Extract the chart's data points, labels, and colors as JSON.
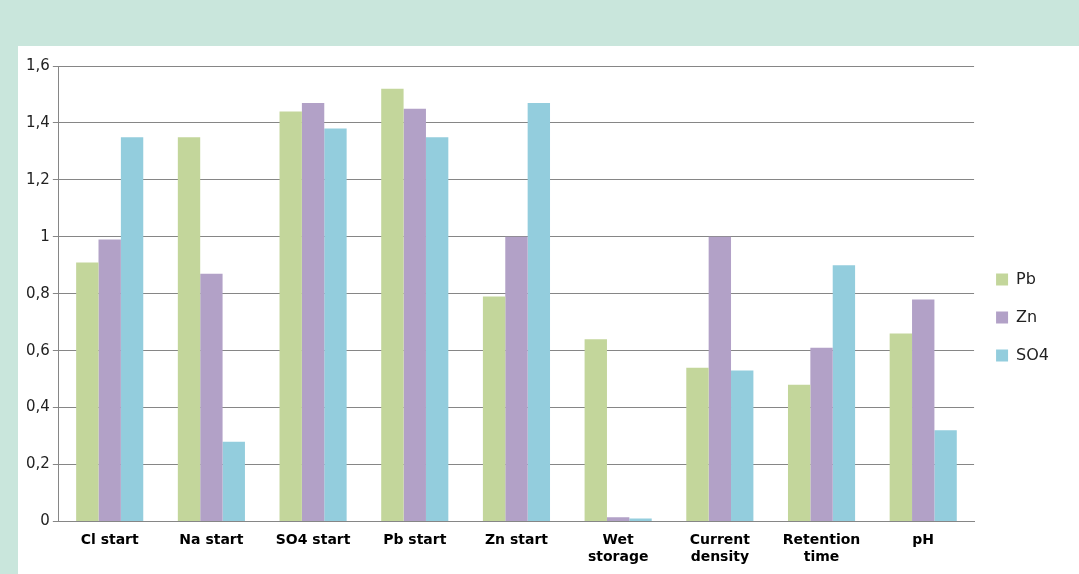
{
  "chart_data": {
    "type": "bar",
    "categories": [
      "Cl start",
      "Na start",
      "SO4 start",
      "Pb start",
      "Zn start",
      "Wet storage",
      "Current density",
      "Retention time",
      "pH"
    ],
    "series": [
      {
        "name": "Pb",
        "color": "#c3d69b",
        "values": [
          0.91,
          1.35,
          1.44,
          1.52,
          0.79,
          0.64,
          0.54,
          0.48,
          0.66
        ]
      },
      {
        "name": "Zn",
        "color": "#b2a1c7",
        "values": [
          0.99,
          0.87,
          1.47,
          1.45,
          1.0,
          0.015,
          1.0,
          0.61,
          0.78
        ]
      },
      {
        "name": "SO4",
        "color": "#93cddd",
        "values": [
          1.35,
          0.28,
          1.38,
          1.35,
          1.47,
          0.01,
          0.53,
          0.9,
          0.32
        ]
      }
    ],
    "ylim": [
      0,
      1.6
    ],
    "yticks": [
      {
        "value": 0,
        "label": "0"
      },
      {
        "value": 0.2,
        "label": "0,2"
      },
      {
        "value": 0.4,
        "label": "0,4"
      },
      {
        "value": 0.6,
        "label": "0,6"
      },
      {
        "value": 0.8,
        "label": "0,8"
      },
      {
        "value": 1,
        "label": "1"
      },
      {
        "value": 1.2,
        "label": "1,2"
      },
      {
        "value": 1.4,
        "label": "1,4"
      },
      {
        "value": 1.6,
        "label": "1,6"
      }
    ],
    "grid": "y",
    "legend": "right"
  }
}
